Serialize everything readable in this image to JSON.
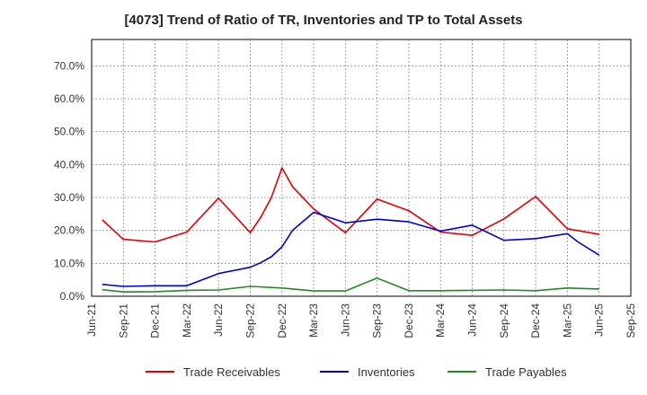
{
  "chart_data": {
    "type": "line",
    "title": "[4073]  Trend of Ratio of TR, Inventories and TP to Total Assets",
    "xlabel": "",
    "ylabel": "",
    "x_tick_labels": [
      "Jun-21",
      "Sep-21",
      "Dec-21",
      "Mar-22",
      "Jun-22",
      "Sep-22",
      "Dec-22",
      "Mar-23",
      "Jun-23",
      "Sep-23",
      "Dec-23",
      "Mar-24",
      "Jun-24",
      "Sep-24",
      "Dec-24",
      "Mar-25",
      "Jun-25",
      "Sep-25"
    ],
    "y_tick_labels": [
      "0.0%",
      "10.0%",
      "20.0%",
      "30.0%",
      "40.0%",
      "50.0%",
      "60.0%",
      "70.0%"
    ],
    "ylim": [
      0,
      78
    ],
    "grid": true,
    "legend_position": "bottom",
    "series": [
      {
        "name": "Trade Receivables",
        "color": "#e00000",
        "points": [
          [
            "2021-07",
            23.2
          ],
          [
            "2021-09",
            17.3
          ],
          [
            "2021-12",
            16.5
          ],
          [
            "2022-03",
            19.5
          ],
          [
            "2022-06",
            29.8
          ],
          [
            "2022-09",
            19.3
          ],
          [
            "2022-10",
            24.0
          ],
          [
            "2022-11",
            30.0
          ],
          [
            "2022-12",
            39.0
          ],
          [
            "2023-01",
            33.3
          ],
          [
            "2023-03",
            26.5
          ],
          [
            "2023-06",
            19.3
          ],
          [
            "2023-09",
            29.5
          ],
          [
            "2023-12",
            26.0
          ],
          [
            "2024-03",
            19.5
          ],
          [
            "2024-06",
            18.5
          ],
          [
            "2024-09",
            23.5
          ],
          [
            "2024-12",
            30.3
          ],
          [
            "2025-03",
            20.5
          ],
          [
            "2025-06",
            18.8
          ]
        ]
      },
      {
        "name": "Inventories",
        "color": "#0000d0",
        "points": [
          [
            "2021-07",
            3.6
          ],
          [
            "2021-09",
            3.0
          ],
          [
            "2021-12",
            3.2
          ],
          [
            "2022-03",
            3.2
          ],
          [
            "2022-06",
            6.9
          ],
          [
            "2022-09",
            8.8
          ],
          [
            "2022-10",
            10.2
          ],
          [
            "2022-11",
            12.0
          ],
          [
            "2022-12",
            15.0
          ],
          [
            "2023-01",
            20.0
          ],
          [
            "2023-03",
            25.5
          ],
          [
            "2023-06",
            22.3
          ],
          [
            "2023-09",
            23.4
          ],
          [
            "2023-12",
            22.6
          ],
          [
            "2024-03",
            19.8
          ],
          [
            "2024-06",
            21.6
          ],
          [
            "2024-09",
            17.0
          ],
          [
            "2024-12",
            17.5
          ],
          [
            "2025-03",
            19.0
          ],
          [
            "2025-04",
            16.5
          ],
          [
            "2025-06",
            12.5
          ]
        ]
      },
      {
        "name": "Trade Payables",
        "color": "#228b22",
        "points": [
          [
            "2021-07",
            2.0
          ],
          [
            "2021-09",
            1.3
          ],
          [
            "2021-12",
            1.4
          ],
          [
            "2022-03",
            1.8
          ],
          [
            "2022-06",
            1.9
          ],
          [
            "2022-09",
            3.0
          ],
          [
            "2022-12",
            2.5
          ],
          [
            "2023-03",
            1.6
          ],
          [
            "2023-06",
            1.6
          ],
          [
            "2023-09",
            5.5
          ],
          [
            "2023-12",
            1.7
          ],
          [
            "2024-03",
            1.7
          ],
          [
            "2024-06",
            1.8
          ],
          [
            "2024-09",
            1.9
          ],
          [
            "2024-12",
            1.7
          ],
          [
            "2025-03",
            2.5
          ],
          [
            "2025-06",
            2.2
          ]
        ]
      }
    ]
  }
}
